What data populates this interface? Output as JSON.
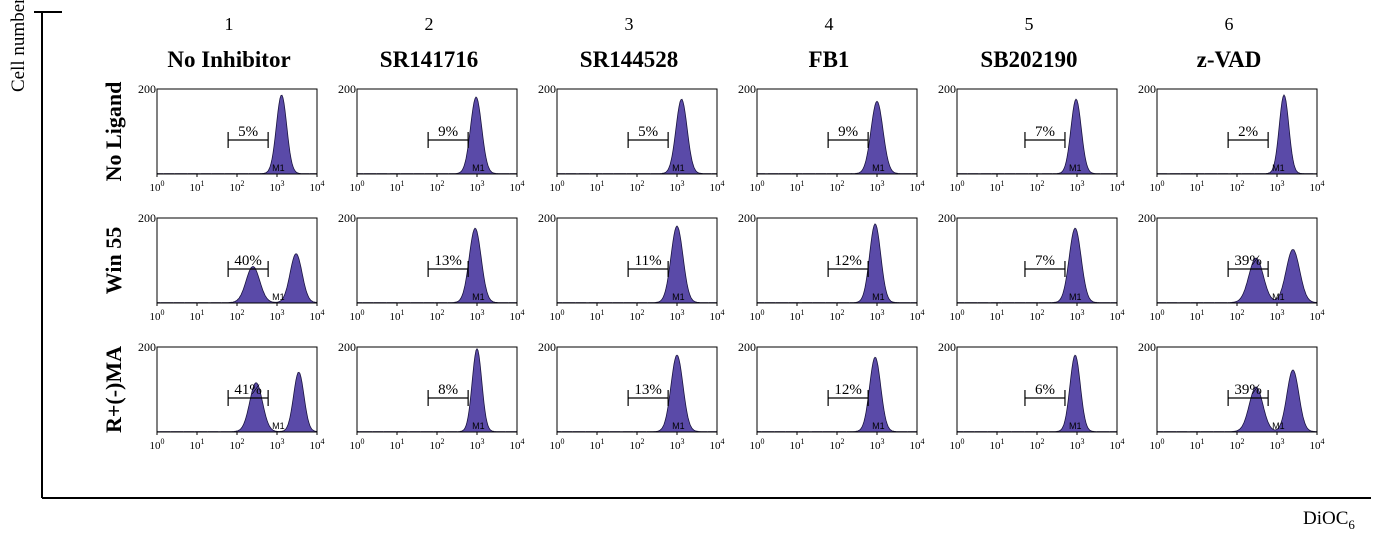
{
  "figure": {
    "y_axis_label": "Cell number",
    "x_axis_label_main": "DiOC",
    "x_axis_label_sub": "6"
  },
  "colors": {
    "fill": "#5a4aa8",
    "stroke": "#1a1440",
    "frame": "#000000"
  },
  "chart_data": {
    "type": "histogram-grid",
    "columns": [
      {
        "number": "1",
        "name": "No Inhibitor"
      },
      {
        "number": "2",
        "name": "SR141716"
      },
      {
        "number": "3",
        "name": "SR144528"
      },
      {
        "number": "4",
        "name": "FB1"
      },
      {
        "number": "5",
        "name": "SB202190"
      },
      {
        "number": "6",
        "name": "z-VAD"
      }
    ],
    "rows": [
      "No Ligand",
      "Win 55",
      "R+(-)MA"
    ],
    "y_tick_label": "200",
    "x_ticks": [
      {
        "base": "10",
        "exp": "0"
      },
      {
        "base": "10",
        "exp": "1"
      },
      {
        "base": "10",
        "exp": "2"
      },
      {
        "base": "10",
        "exp": "3"
      },
      {
        "base": "10",
        "exp": "4"
      }
    ],
    "x_scale": "log",
    "xlim": [
      1,
      10000
    ],
    "ylim": [
      0,
      200
    ],
    "marker_label": "M1",
    "panels": [
      [
        {
          "pct": "5%",
          "gate": [
            60,
            600
          ],
          "peaks": [
            [
              1300,
              185,
              0.13
            ]
          ]
        },
        {
          "pct": "9%",
          "gate": [
            60,
            600
          ],
          "peaks": [
            [
              950,
              180,
              0.14
            ]
          ]
        },
        {
          "pct": "5%",
          "gate": [
            60,
            600
          ],
          "peaks": [
            [
              1300,
              175,
              0.14
            ]
          ]
        },
        {
          "pct": "9%",
          "gate": [
            60,
            600
          ],
          "peaks": [
            [
              1000,
              170,
              0.15
            ]
          ]
        },
        {
          "pct": "7%",
          "gate": [
            50,
            500
          ],
          "peaks": [
            [
              950,
              175,
              0.13
            ]
          ]
        },
        {
          "pct": "2%",
          "gate": [
            60,
            600
          ],
          "peaks": [
            [
              1500,
              185,
              0.12
            ]
          ]
        }
      ],
      [
        {
          "pct": "40%",
          "gate": [
            60,
            600
          ],
          "peaks": [
            [
              250,
              85,
              0.17
            ],
            [
              3000,
              115,
              0.15
            ]
          ]
        },
        {
          "pct": "13%",
          "gate": [
            60,
            600
          ],
          "peaks": [
            [
              900,
              175,
              0.15
            ]
          ]
        },
        {
          "pct": "11%",
          "gate": [
            60,
            600
          ],
          "peaks": [
            [
              1000,
              180,
              0.15
            ]
          ]
        },
        {
          "pct": "12%",
          "gate": [
            60,
            600
          ],
          "peaks": [
            [
              900,
              185,
              0.14
            ]
          ]
        },
        {
          "pct": "7%",
          "gate": [
            50,
            500
          ],
          "peaks": [
            [
              900,
              175,
              0.15
            ]
          ]
        },
        {
          "pct": "39%",
          "gate": [
            60,
            600
          ],
          "peaks": [
            [
              300,
              105,
              0.18
            ],
            [
              2500,
              125,
              0.17
            ]
          ]
        }
      ],
      [
        {
          "pct": "41%",
          "gate": [
            60,
            600
          ],
          "peaks": [
            [
              300,
              115,
              0.16
            ],
            [
              3500,
              140,
              0.13
            ]
          ]
        },
        {
          "pct": "8%",
          "gate": [
            60,
            600
          ],
          "peaks": [
            [
              1000,
              195,
              0.12
            ]
          ]
        },
        {
          "pct": "13%",
          "gate": [
            60,
            600
          ],
          "peaks": [
            [
              1000,
              180,
              0.15
            ]
          ]
        },
        {
          "pct": "12%",
          "gate": [
            60,
            600
          ],
          "peaks": [
            [
              900,
              175,
              0.14
            ]
          ]
        },
        {
          "pct": "6%",
          "gate": [
            50,
            500
          ],
          "peaks": [
            [
              900,
              180,
              0.13
            ]
          ]
        },
        {
          "pct": "39%",
          "gate": [
            60,
            600
          ],
          "peaks": [
            [
              300,
              105,
              0.17
            ],
            [
              2500,
              145,
              0.15
            ]
          ]
        }
      ]
    ]
  }
}
